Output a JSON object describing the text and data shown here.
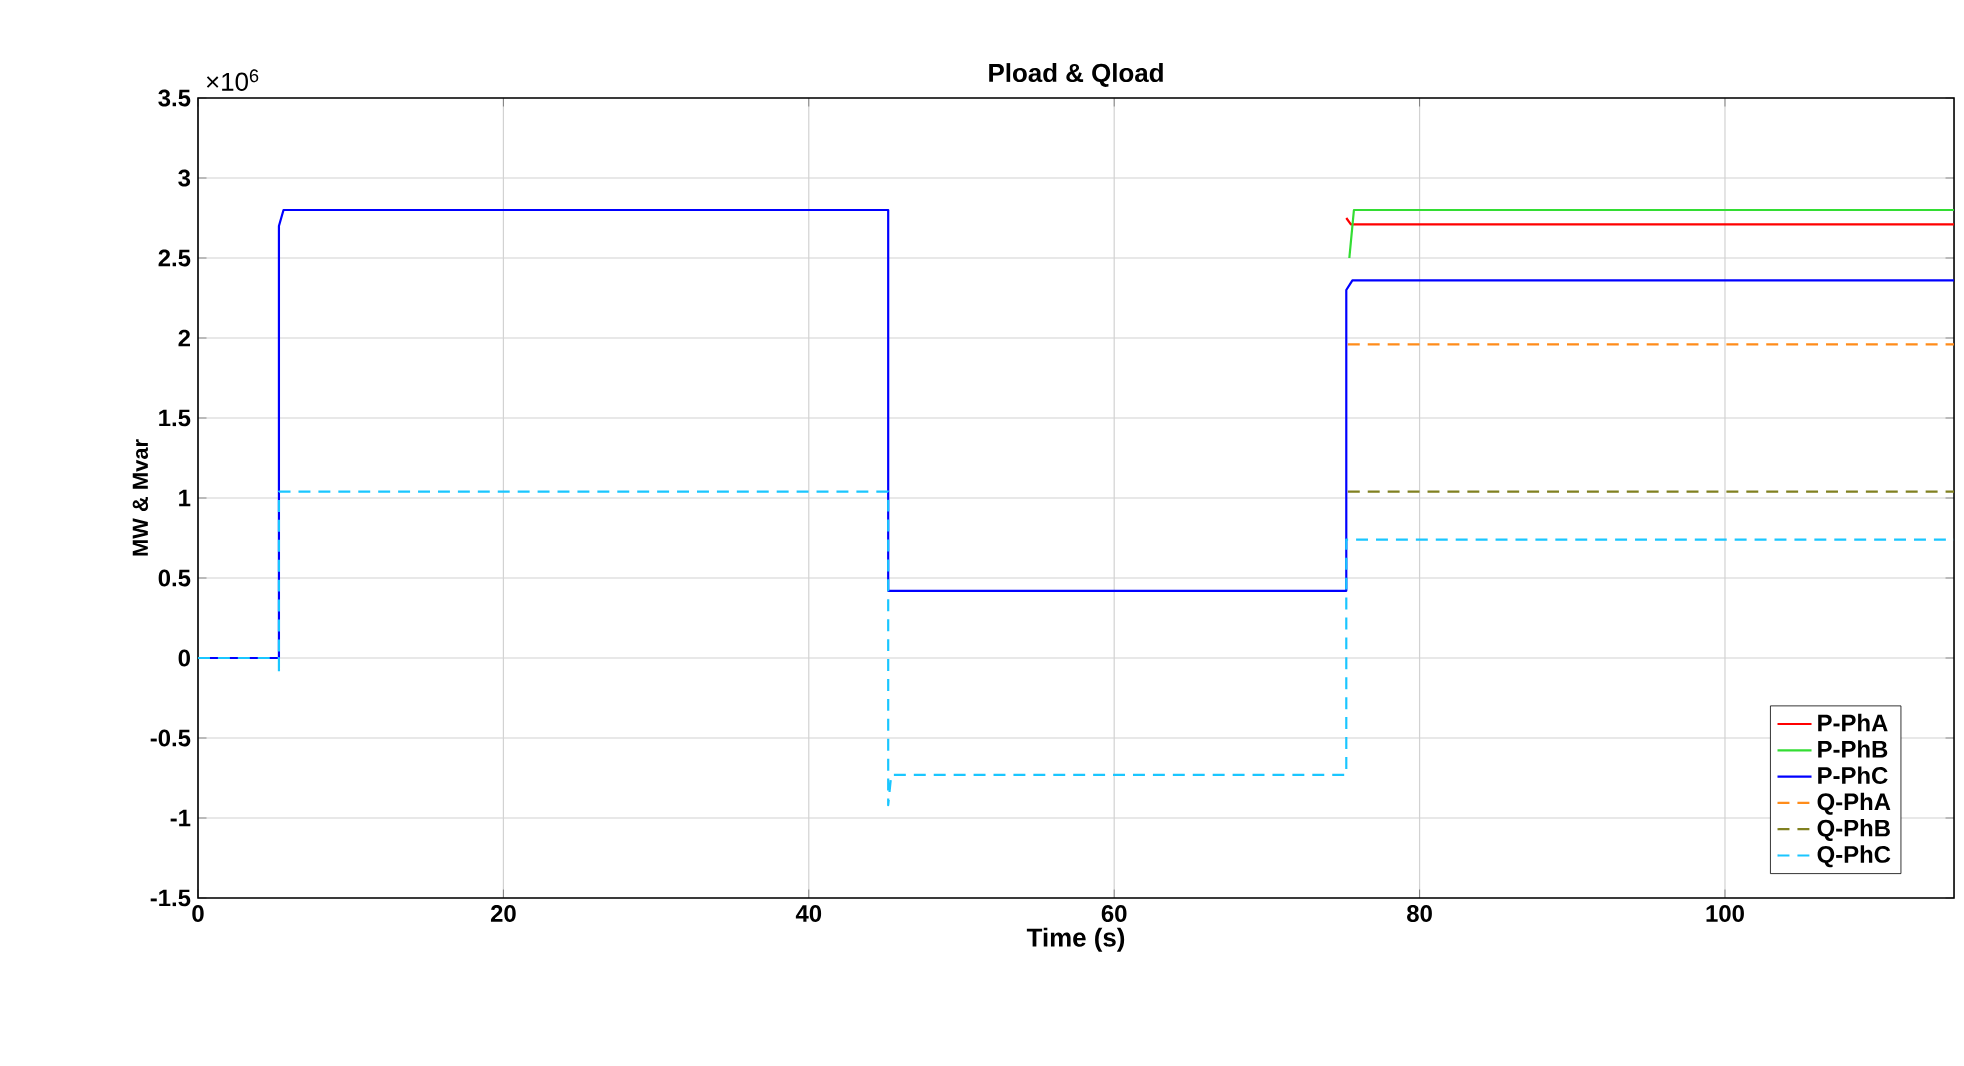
{
  "chart_data": {
    "type": "line",
    "title": "Pload & Qload",
    "xlabel": "Time (s)",
    "ylabel": "MW & Mvar",
    "annotations": [
      "×10$^{6}$"
    ],
    "xlim": [
      0,
      115
    ],
    "xticks": [
      0,
      20,
      40,
      60,
      80,
      100
    ],
    "ylim": [
      -1.5,
      3.5
    ],
    "yticks": [
      -1.5,
      -1,
      -0.5,
      0,
      0.5,
      1,
      1.5,
      2,
      2.5,
      3,
      3.5
    ],
    "grid": true,
    "legend": "bottom right",
    "series": [
      {
        "name": "P-PhA",
        "color": "#ff0000",
        "line_style": "solid",
        "x": [
          75.2,
          75.5,
          115
        ],
        "values": [
          2.75,
          2.71,
          2.71
        ]
      },
      {
        "name": "P-PhB",
        "color": "#33dd33",
        "line_style": "solid",
        "x": [
          75.4,
          75.7,
          115
        ],
        "values": [
          2.5,
          2.8,
          2.8
        ]
      },
      {
        "name": "P-PhC",
        "color": "#0000ff",
        "line_style": "solid",
        "x": [
          0,
          5.3,
          5.3,
          5.6,
          45.2,
          45.2,
          75.2,
          75.2,
          75.6,
          115
        ],
        "values": [
          0,
          0,
          2.7,
          2.8,
          2.8,
          0.42,
          0.42,
          2.3,
          2.36,
          2.36
        ]
      },
      {
        "name": "Q-PhA",
        "color": "#ff8c1a",
        "line_style": "dashed",
        "x": [
          75.3,
          115
        ],
        "values": [
          1.96,
          1.96
        ]
      },
      {
        "name": "Q-PhB",
        "color": "#808020",
        "line_style": "dashed",
        "x": [
          75.3,
          115
        ],
        "values": [
          1.04,
          1.04
        ]
      },
      {
        "name": "Q-PhC",
        "color": "#1ac6ff",
        "line_style": "dashed",
        "x": [
          0,
          5.3,
          5.3,
          5.3,
          45.2,
          45.2,
          45.4,
          75.2,
          75.2,
          115
        ],
        "values": [
          0,
          0,
          -0.1,
          1.04,
          1.04,
          -0.92,
          -0.73,
          -0.73,
          0.74,
          0.74
        ]
      }
    ]
  }
}
